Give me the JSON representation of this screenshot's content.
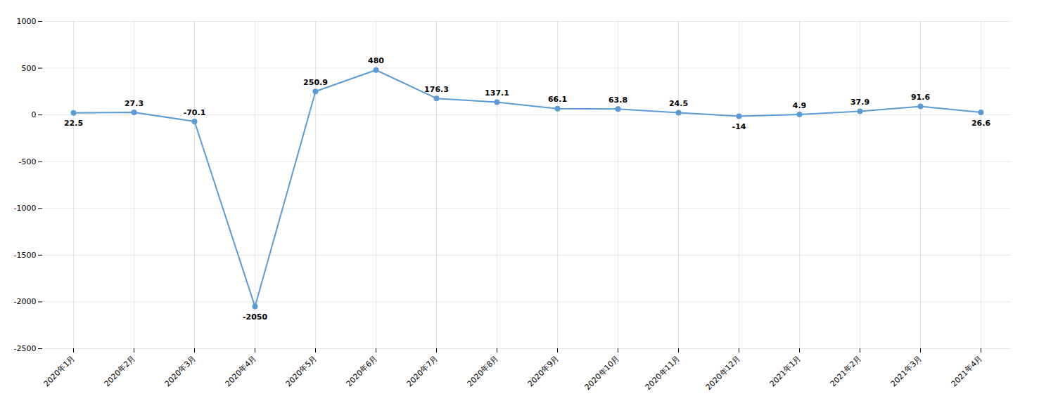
{
  "chart_data": {
    "type": "line",
    "categories": [
      "2020年1月",
      "2020年2月",
      "2020年3月",
      "2020年4月",
      "2020年5月",
      "2020年6月",
      "2020年7月",
      "2020年8月",
      "2020年9月",
      "2020年10月",
      "2020年11月",
      "2020年12月",
      "2021年1月",
      "2021年2月",
      "2021年3月",
      "2021年4月"
    ],
    "values": [
      22.5,
      27.3,
      -70.1,
      -2050,
      250.9,
      480,
      176.3,
      137.1,
      66.1,
      63.8,
      24.5,
      -14,
      4.9,
      37.9,
      91.6,
      26.6
    ],
    "color": "#5B9BD5",
    "marker": "circle",
    "ylim": [
      -2500,
      1000
    ],
    "yticks": [
      -2500,
      -2000,
      -1500,
      -1000,
      -500,
      0,
      500,
      1000
    ],
    "grid": true,
    "data_labels": true
  }
}
